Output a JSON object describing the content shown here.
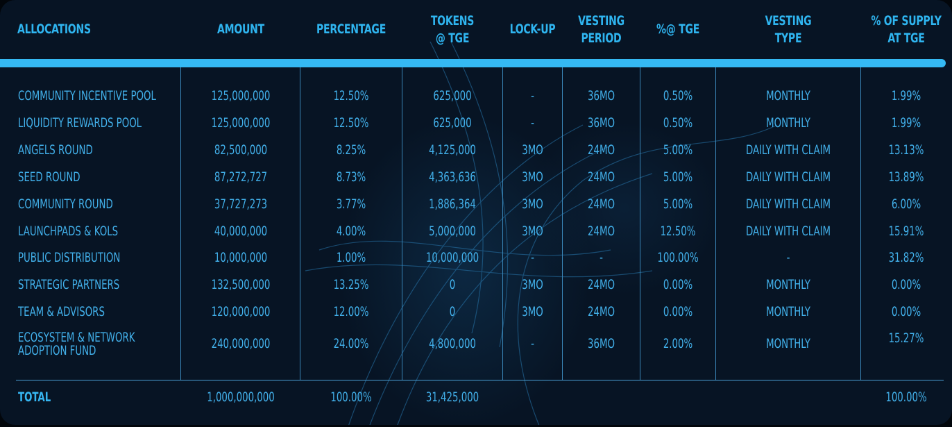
{
  "table": {
    "colors": {
      "accent": "#35b9f3",
      "text": "#42b0ea",
      "background": "#071424",
      "divider": "#3a86b8"
    },
    "headers": [
      "ALLOCATIONS",
      "AMOUNT",
      "PERCENTAGE",
      "TOKENS\n@ TGE",
      "LOCK-UP",
      "VESTING\nPERIOD",
      "%@ TGE",
      "VESTING\nTYPE",
      "% OF SUPPLY\nAT TGE"
    ],
    "rows": [
      {
        "allocation": "COMMUNITY INCENTIVE POOL",
        "amount": "125,000,000",
        "percentage": "12.50%",
        "tokens_tge": "625,000",
        "lockup": "-",
        "vesting_period": "36MO",
        "pct_tge": "0.50%",
        "vesting_type": "MONTHLY",
        "supply_tge": "1.99%"
      },
      {
        "allocation": "LIQUIDITY REWARDS POOL",
        "amount": "125,000,000",
        "percentage": "12.50%",
        "tokens_tge": "625,000",
        "lockup": "-",
        "vesting_period": "36MO",
        "pct_tge": "0.50%",
        "vesting_type": "MONTHLY",
        "supply_tge": "1.99%"
      },
      {
        "allocation": "ANGELS ROUND",
        "amount": "82,500,000",
        "percentage": "8.25%",
        "tokens_tge": "4,125,000",
        "lockup": "3MO",
        "vesting_period": "24MO",
        "pct_tge": "5.00%",
        "vesting_type": "DAILY WITH CLAIM",
        "supply_tge": "13.13%"
      },
      {
        "allocation": "SEED ROUND",
        "amount": "87,272,727",
        "percentage": "8.73%",
        "tokens_tge": "4,363,636",
        "lockup": "3MO",
        "vesting_period": "24MO",
        "pct_tge": "5.00%",
        "vesting_type": "DAILY WITH CLAIM",
        "supply_tge": "13.89%"
      },
      {
        "allocation": "COMMUNITY ROUND",
        "amount": "37,727,273",
        "percentage": "3.77%",
        "tokens_tge": "1,886,364",
        "lockup": "3MO",
        "vesting_period": "24MO",
        "pct_tge": "5.00%",
        "vesting_type": "DAILY WITH CLAIM",
        "supply_tge": "6.00%"
      },
      {
        "allocation": "LAUNCHPADS & KOLS",
        "amount": "40,000,000",
        "percentage": "4.00%",
        "tokens_tge": "5,000,000",
        "lockup": "3MO",
        "vesting_period": "24MO",
        "pct_tge": "12.50%",
        "vesting_type": "DAILY WITH CLAIM",
        "supply_tge": "15.91%"
      },
      {
        "allocation": "PUBLIC DISTRIBUTION",
        "amount": "10,000,000",
        "percentage": "1.00%",
        "tokens_tge": "10,000,000",
        "lockup": "-",
        "vesting_period": "-",
        "pct_tge": "100.00%",
        "vesting_type": "-",
        "supply_tge": "31.82%"
      },
      {
        "allocation": "STRATEGIC PARTNERS",
        "amount": "132,500,000",
        "percentage": "13.25%",
        "tokens_tge": "0",
        "lockup": "3MO",
        "vesting_period": "24MO",
        "pct_tge": "0.00%",
        "vesting_type": "MONTHLY",
        "supply_tge": "0.00%"
      },
      {
        "allocation": "TEAM & ADVISORS",
        "amount": "120,000,000",
        "percentage": "12.00%",
        "tokens_tge": "0",
        "lockup": "3MO",
        "vesting_period": "24MO",
        "pct_tge": "0.00%",
        "vesting_type": "MONTHLY",
        "supply_tge": "0.00%"
      },
      {
        "allocation": "ECOSYSTEM &  NETWORK\nADOPTION FUND",
        "amount": "240,000,000",
        "percentage": "24.00%",
        "tokens_tge": "4,800,000",
        "lockup": "-",
        "vesting_period": "36MO",
        "pct_tge": "2.00%",
        "vesting_type": "MONTHLY",
        "supply_tge": "15.27%"
      }
    ],
    "total": {
      "label": "TOTAL",
      "amount": "1,000,000,000",
      "percentage": "100.00%",
      "tokens_tge": "31,425,000",
      "supply_tge": "100.00%"
    }
  }
}
